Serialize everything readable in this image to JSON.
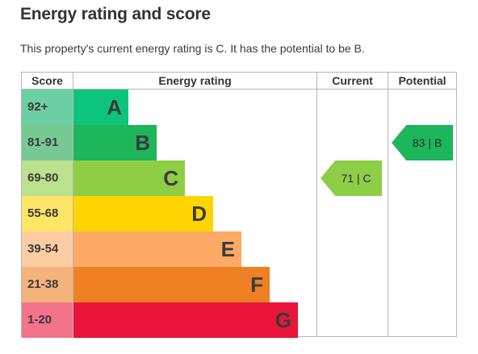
{
  "title": "Energy rating and score",
  "summary": "This property's current energy rating is C. It has the potential to be B.",
  "table": {
    "headers": {
      "score": "Score",
      "rating": "Energy rating",
      "current": "Current",
      "potential": "Potential"
    },
    "bands": [
      {
        "range": "92+",
        "letter": "A",
        "bar_color": "#0ec47d",
        "score_color": "#6ccfa4"
      },
      {
        "range": "81-91",
        "letter": "B",
        "bar_color": "#1db65a",
        "score_color": "#77c993"
      },
      {
        "range": "69-80",
        "letter": "C",
        "bar_color": "#8dce46",
        "score_color": "#bbe18f"
      },
      {
        "range": "55-68",
        "letter": "D",
        "bar_color": "#ffd500",
        "score_color": "#ffe566"
      },
      {
        "range": "39-54",
        "letter": "E",
        "bar_color": "#fcaa65",
        "score_color": "#fdcca3"
      },
      {
        "range": "21-38",
        "letter": "F",
        "bar_color": "#ef8023",
        "score_color": "#f4b37b"
      },
      {
        "range": "1-20",
        "letter": "G",
        "bar_color": "#e9153b",
        "score_color": "#f2738a"
      }
    ]
  },
  "current": {
    "label": "71 | C",
    "score": 71,
    "band": "C",
    "color": "#8dce46"
  },
  "potential": {
    "label": "83 | B",
    "score": 83,
    "band": "B",
    "color": "#1db65a"
  }
}
